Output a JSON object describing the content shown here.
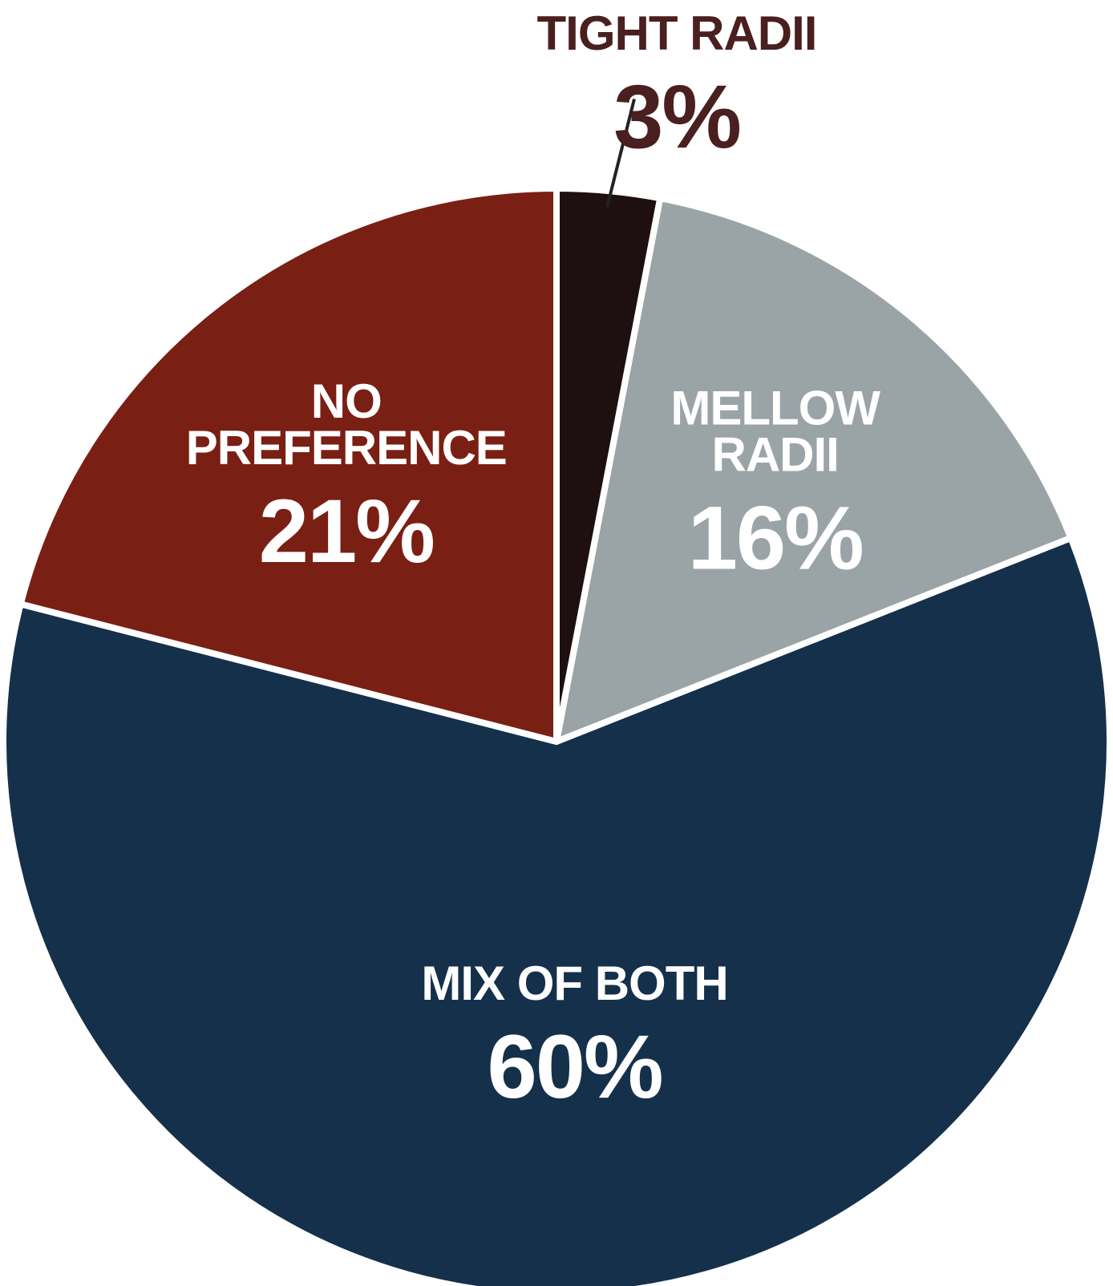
{
  "chart_data": {
    "type": "pie",
    "slices": [
      {
        "label": [
          "TIGHT RADII"
        ],
        "value": 3,
        "value_label": "3%",
        "color": "#1e0f10",
        "text_color": "#4a1f1f",
        "label_placement": "outside"
      },
      {
        "label": [
          "MELLOW",
          "RADII"
        ],
        "value": 16,
        "value_label": "16%",
        "color": "#9aa4a6",
        "text_color": "#ffffff",
        "label_placement": "inside"
      },
      {
        "label": [
          "MIX OF BOTH"
        ],
        "value": 60,
        "value_label": "60%",
        "color": "#15304a",
        "text_color": "#ffffff",
        "label_placement": "inside"
      },
      {
        "label": [
          "NO",
          "PREFERENCE"
        ],
        "value": 21,
        "value_label": "21%",
        "color": "#7a1f14",
        "text_color": "#ffffff",
        "label_placement": "inside"
      }
    ],
    "start_angle_deg": 0,
    "direction": "clockwise",
    "legend": "none",
    "grid": false
  }
}
